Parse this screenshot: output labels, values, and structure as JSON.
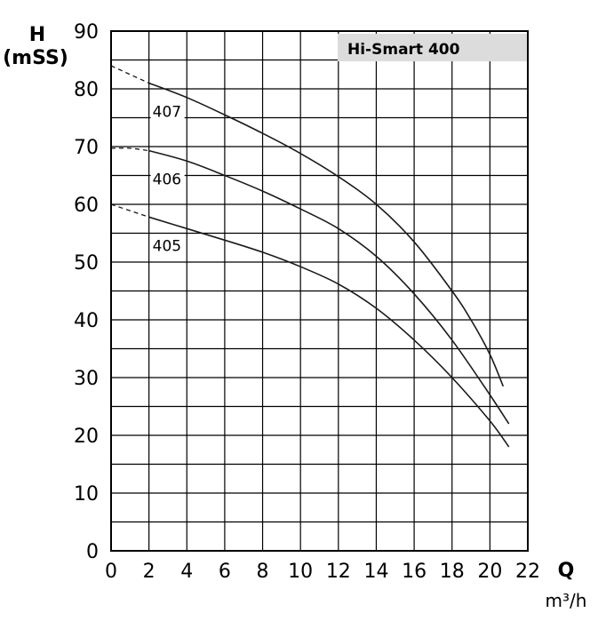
{
  "chart_data": {
    "type": "line",
    "title": "Hi-Smart 400",
    "ylabel": "H",
    "ylabel_unit": "(mSS)",
    "xlabel": "Q",
    "xlabel_unit": "m³/h",
    "xlim": [
      0,
      22
    ],
    "ylim": [
      0,
      90
    ],
    "x_ticks": [
      0,
      2,
      4,
      6,
      8,
      10,
      12,
      14,
      16,
      18,
      20,
      22
    ],
    "y_ticks": [
      0,
      10,
      20,
      30,
      40,
      50,
      60,
      70,
      80,
      90
    ],
    "grid": true,
    "legend": "none",
    "colors": {
      "line": "#1a1a1a",
      "title_box": "#dcdcdc",
      "grid": "#000000"
    },
    "series": [
      {
        "name": "407",
        "extrapolated": [
          [
            0,
            84
          ],
          [
            2,
            81
          ]
        ],
        "points": [
          [
            2,
            81
          ],
          [
            4,
            78.5
          ],
          [
            6,
            75.5
          ],
          [
            8,
            72.3
          ],
          [
            10,
            68.8
          ],
          [
            12,
            64.8
          ],
          [
            14,
            60
          ],
          [
            16,
            53.5
          ],
          [
            18,
            45
          ],
          [
            19,
            40
          ],
          [
            20,
            34
          ],
          [
            20.7,
            28.5
          ]
        ]
      },
      {
        "name": "406",
        "extrapolated": [
          [
            0,
            69.7
          ],
          [
            1,
            69.7
          ],
          [
            2,
            69.3
          ]
        ],
        "points": [
          [
            2,
            69.3
          ],
          [
            4,
            67.5
          ],
          [
            6,
            65
          ],
          [
            8,
            62.3
          ],
          [
            10,
            59.2
          ],
          [
            12,
            55.8
          ],
          [
            14,
            51
          ],
          [
            16,
            44.5
          ],
          [
            18,
            36.5
          ],
          [
            20,
            27
          ],
          [
            21,
            22
          ]
        ]
      },
      {
        "name": "405",
        "extrapolated": [
          [
            0,
            60
          ],
          [
            2,
            57.8
          ]
        ],
        "points": [
          [
            2,
            57.8
          ],
          [
            4,
            55.8
          ],
          [
            6,
            53.8
          ],
          [
            8,
            51.7
          ],
          [
            10,
            49.2
          ],
          [
            12,
            46.2
          ],
          [
            14,
            42
          ],
          [
            16,
            36.5
          ],
          [
            18,
            30
          ],
          [
            20,
            22.5
          ],
          [
            21,
            18
          ]
        ]
      }
    ]
  }
}
